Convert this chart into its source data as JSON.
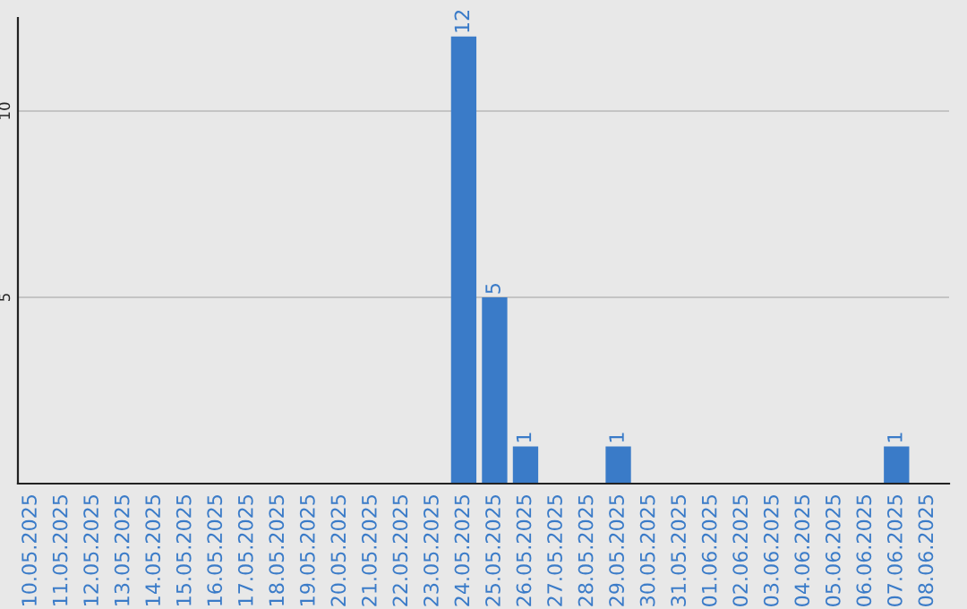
{
  "chart_data": {
    "type": "bar",
    "categories": [
      "10.05.2025",
      "11.05.2025",
      "12.05.2025",
      "13.05.2025",
      "14.05.2025",
      "15.05.2025",
      "16.05.2025",
      "17.05.2025",
      "18.05.2025",
      "19.05.2025",
      "20.05.2025",
      "21.05.2025",
      "22.05.2025",
      "23.05.2025",
      "24.05.2025",
      "25.05.2025",
      "26.05.2025",
      "27.05.2025",
      "28.05.2025",
      "29.05.2025",
      "30.05.2025",
      "31.05.2025",
      "01.06.2025",
      "02.06.2025",
      "03.06.2025",
      "04.06.2025",
      "05.06.2025",
      "06.06.2025",
      "07.06.2025",
      "08.06.2025"
    ],
    "values": [
      0,
      0,
      0,
      0,
      0,
      0,
      0,
      0,
      0,
      0,
      0,
      0,
      0,
      0,
      12,
      5,
      1,
      0,
      0,
      1,
      0,
      0,
      0,
      0,
      0,
      0,
      0,
      0,
      1,
      0
    ],
    "value_labels": [
      null,
      null,
      null,
      null,
      null,
      null,
      null,
      null,
      null,
      null,
      null,
      null,
      null,
      null,
      "12",
      "5",
      "1",
      null,
      null,
      "1",
      null,
      null,
      null,
      null,
      null,
      null,
      null,
      null,
      "1",
      null
    ],
    "color": "#3a7bc8",
    "ylim": [
      0,
      12.5
    ],
    "yticks": [
      5,
      10
    ],
    "grid": "y",
    "legend": false
  }
}
